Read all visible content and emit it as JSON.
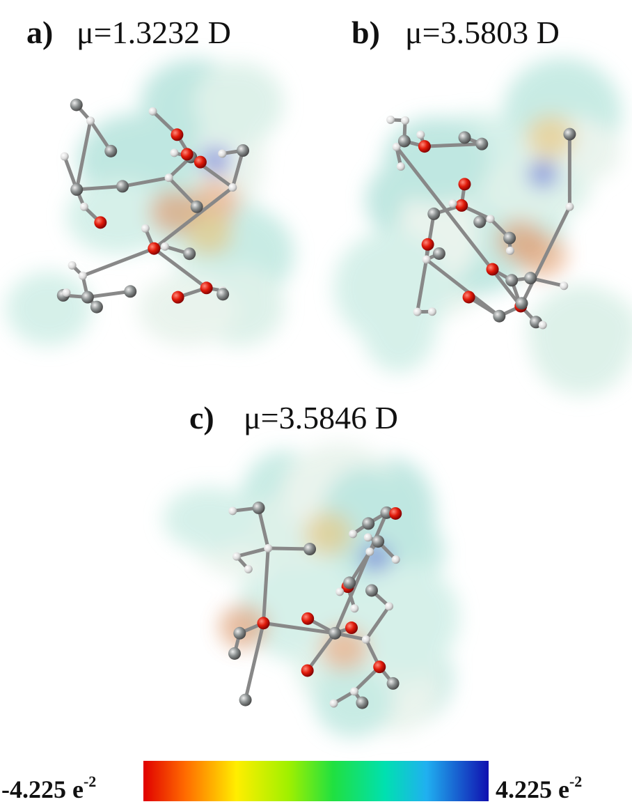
{
  "panels": [
    {
      "label": "a)",
      "dipole": "μ=1.3232 D"
    },
    {
      "label": "b)",
      "dipole": "μ=3.5803 D"
    },
    {
      "label": "c)",
      "dipole": "μ=3.5846 D"
    }
  ],
  "colorbar": {
    "min_label": "-4.225 e",
    "min_exponent": "-2",
    "max_label": "4.225 e",
    "max_exponent": "-2"
  }
}
